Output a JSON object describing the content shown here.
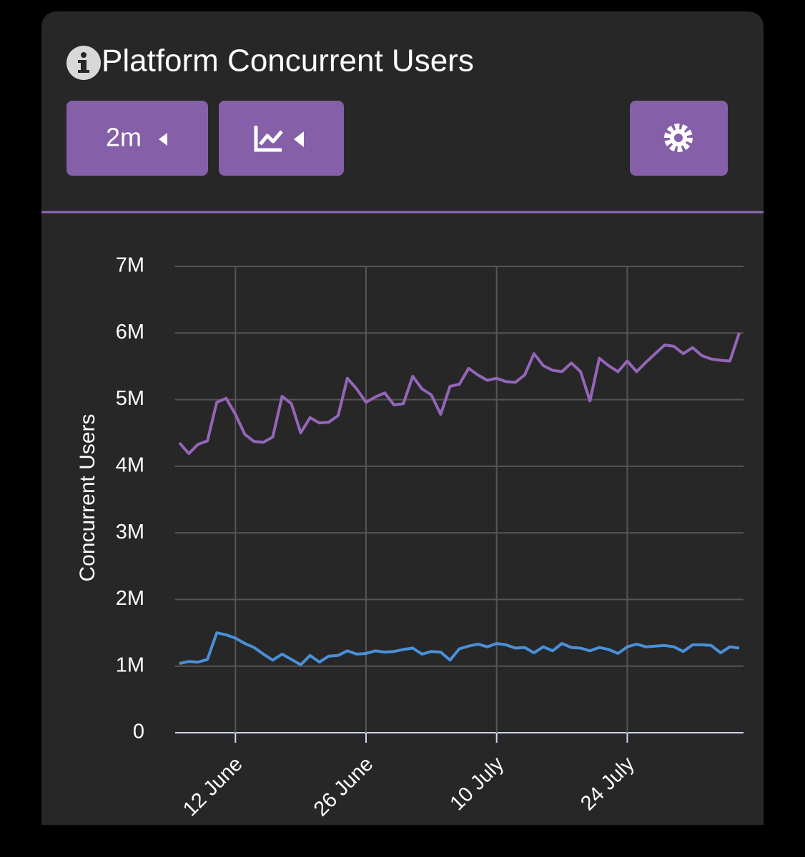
{
  "header": {
    "title": "Platform Concurrent Users",
    "range_button": "2m"
  },
  "chart_data": {
    "type": "line",
    "ylabel": "Concurrent Users",
    "x": [
      "6 June",
      "7 June",
      "8 June",
      "9 June",
      "10 June",
      "11 June",
      "12 June",
      "13 June",
      "14 June",
      "15 June",
      "16 June",
      "17 June",
      "18 June",
      "19 June",
      "20 June",
      "21 June",
      "22 June",
      "23 June",
      "24 June",
      "25 June",
      "26 June",
      "27 June",
      "28 June",
      "29 June",
      "30 June",
      "1 July",
      "2 July",
      "3 July",
      "4 July",
      "5 July",
      "6 July",
      "7 July",
      "8 July",
      "9 July",
      "10 July",
      "11 July",
      "12 July",
      "13 July",
      "14 July",
      "15 July",
      "16 July",
      "17 July",
      "18 July",
      "19 July",
      "20 July",
      "21 July",
      "22 July",
      "23 July",
      "24 July",
      "25 July",
      "26 July",
      "27 July",
      "28 July",
      "29 July",
      "30 July",
      "31 July",
      "1 August",
      "2 August",
      "3 August",
      "4 August",
      "5 August"
    ],
    "xticks": [
      "12 June",
      "26 June",
      "10 July",
      "24 July"
    ],
    "series": [
      {
        "color": "#9466b8",
        "values": [
          4350000,
          4190000,
          4330000,
          4380000,
          4960000,
          5020000,
          4780000,
          4480000,
          4370000,
          4360000,
          4440000,
          5050000,
          4940000,
          4500000,
          4730000,
          4650000,
          4660000,
          4760000,
          5320000,
          5160000,
          4960000,
          5040000,
          5100000,
          4920000,
          4940000,
          5350000,
          5160000,
          5070000,
          4780000,
          5200000,
          5230000,
          5470000,
          5370000,
          5290000,
          5320000,
          5270000,
          5260000,
          5370000,
          5690000,
          5510000,
          5440000,
          5420000,
          5550000,
          5420000,
          4980000,
          5620000,
          5510000,
          5420000,
          5580000,
          5420000,
          5560000,
          5690000,
          5820000,
          5800000,
          5690000,
          5780000,
          5660000,
          5610000,
          5590000,
          5580000,
          6000000
        ]
      },
      {
        "color": "#4a90d9",
        "values": [
          1040000,
          1070000,
          1060000,
          1100000,
          1500000,
          1470000,
          1420000,
          1340000,
          1280000,
          1180000,
          1090000,
          1180000,
          1100000,
          1020000,
          1160000,
          1060000,
          1150000,
          1160000,
          1230000,
          1180000,
          1190000,
          1230000,
          1210000,
          1220000,
          1250000,
          1270000,
          1180000,
          1220000,
          1210000,
          1090000,
          1260000,
          1300000,
          1330000,
          1290000,
          1340000,
          1320000,
          1270000,
          1280000,
          1200000,
          1290000,
          1230000,
          1340000,
          1280000,
          1270000,
          1230000,
          1280000,
          1250000,
          1190000,
          1290000,
          1330000,
          1290000,
          1300000,
          1310000,
          1290000,
          1220000,
          1320000,
          1320000,
          1310000,
          1200000,
          1290000,
          1270000
        ]
      }
    ],
    "ylim": [
      0,
      7000000
    ],
    "yticks": [
      0,
      {
        "value": 1000000,
        "label": "1M"
      },
      {
        "value": 2000000,
        "label": "2M"
      },
      {
        "value": 3000000,
        "label": "3M"
      },
      {
        "value": 4000000,
        "label": "4M"
      },
      {
        "value": 5000000,
        "label": "5M"
      },
      {
        "value": 6000000,
        "label": "6M"
      },
      {
        "value": 7000000,
        "label": "7M"
      }
    ],
    "grid": true
  }
}
